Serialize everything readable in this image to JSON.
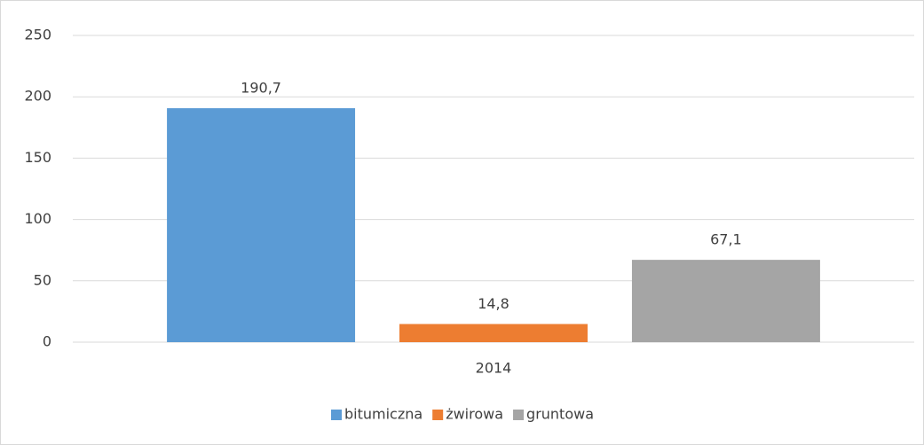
{
  "chart_data": {
    "type": "bar",
    "categories": [
      "2014"
    ],
    "series": [
      {
        "name": "bitumiczna",
        "color": "#5b9bd5",
        "values": [
          190.7
        ],
        "value_labels": [
          "190,7"
        ]
      },
      {
        "name": "żwirowa",
        "color": "#ed7d31",
        "values": [
          14.8
        ],
        "value_labels": [
          "14,8"
        ]
      },
      {
        "name": "gruntowa",
        "color": "#a5a5a5",
        "values": [
          67.1
        ],
        "value_labels": [
          "67,1"
        ]
      }
    ],
    "ylim": [
      0,
      250
    ],
    "yticks": [
      0,
      50,
      100,
      150,
      200,
      250
    ],
    "grid": true,
    "legend": "bottom"
  }
}
